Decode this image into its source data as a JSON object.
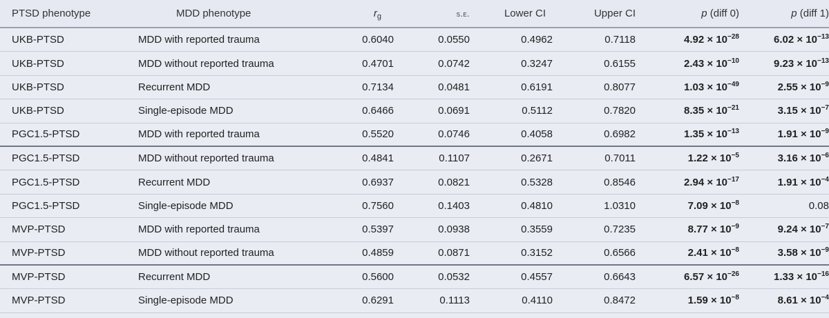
{
  "header": {
    "ptsd": "PTSD phenotype",
    "mdd": "MDD phenotype",
    "rg_base": "r",
    "rg_sub": "g",
    "se": "s.e.",
    "lower": "Lower CI",
    "upper": "Upper CI",
    "p0_var": "p",
    "p0_rest": " (diff 0)",
    "p1_var": "p",
    "p1_rest": " (diff 1)"
  },
  "rows": [
    {
      "ptsd": "UKB-PTSD",
      "mdd": "MDD with reported trauma",
      "rg": "0.6040",
      "se": "0.0550",
      "lower": "0.4962",
      "upper": "0.7118",
      "p0": {
        "mant": "4.92",
        "times": " × 10",
        "exp": "−28",
        "bold": true
      },
      "p1": {
        "mant": "6.02",
        "times": " × 10",
        "exp": "−13",
        "bold": true
      }
    },
    {
      "ptsd": "UKB-PTSD",
      "mdd": "MDD without reported trauma",
      "rg": "0.4701",
      "se": "0.0742",
      "lower": "0.3247",
      "upper": "0.6155",
      "p0": {
        "mant": "2.43",
        "times": " × 10",
        "exp": "−10",
        "bold": true
      },
      "p1": {
        "mant": "9.23",
        "times": " × 10",
        "exp": "−13",
        "bold": true
      }
    },
    {
      "ptsd": "UKB-PTSD",
      "mdd": "Recurrent MDD",
      "rg": "0.7134",
      "se": "0.0481",
      "lower": "0.6191",
      "upper": "0.8077",
      "p0": {
        "mant": "1.03",
        "times": " × 10",
        "exp": "−49",
        "bold": true
      },
      "p1": {
        "mant": "2.55",
        "times": " × 10",
        "exp": "−9",
        "bold": true
      }
    },
    {
      "ptsd": "UKB-PTSD",
      "mdd": "Single-episode MDD",
      "rg": "0.6466",
      "se": "0.0691",
      "lower": "0.5112",
      "upper": "0.7820",
      "p0": {
        "mant": "8.35",
        "times": " × 10",
        "exp": "−21",
        "bold": true
      },
      "p1": {
        "mant": "3.15",
        "times": " × 10",
        "exp": "−7",
        "bold": true
      }
    },
    {
      "ptsd": "PGC1.5-PTSD",
      "mdd": "MDD with reported trauma",
      "rg": "0.5520",
      "se": "0.0746",
      "lower": "0.4058",
      "upper": "0.6982",
      "p0": {
        "mant": "1.35",
        "times": " × 10",
        "exp": "−13",
        "bold": true
      },
      "p1": {
        "mant": "1.91",
        "times": " × 10",
        "exp": "−9",
        "bold": true
      }
    },
    {
      "ptsd": "PGC1.5-PTSD",
      "mdd": "MDD without reported trauma",
      "rg": "0.4841",
      "se": "0.1107",
      "lower": "0.2671",
      "upper": "0.7011",
      "p0": {
        "mant": "1.22",
        "times": " × 10",
        "exp": "−5",
        "bold": true
      },
      "p1": {
        "mant": "3.16",
        "times": " × 10",
        "exp": "−6",
        "bold": true
      }
    },
    {
      "ptsd": "PGC1.5-PTSD",
      "mdd": "Recurrent MDD",
      "rg": "0.6937",
      "se": "0.0821",
      "lower": "0.5328",
      "upper": "0.8546",
      "p0": {
        "mant": "2.94",
        "times": " × 10",
        "exp": "−17",
        "bold": true
      },
      "p1": {
        "mant": "1.91",
        "times": " × 10",
        "exp": "−4",
        "bold": true
      }
    },
    {
      "ptsd": "PGC1.5-PTSD",
      "mdd": "Single-episode MDD",
      "rg": "0.7560",
      "se": "0.1403",
      "lower": "0.4810",
      "upper": "1.0310",
      "p0": {
        "mant": "7.09",
        "times": " × 10",
        "exp": "−8",
        "bold": true
      },
      "p1": {
        "mant": "0.08",
        "times": "",
        "exp": "",
        "bold": false
      }
    },
    {
      "ptsd": "MVP-PTSD",
      "mdd": "MDD with reported trauma",
      "rg": "0.5397",
      "se": "0.0938",
      "lower": "0.3559",
      "upper": "0.7235",
      "p0": {
        "mant": "8.77",
        "times": " × 10",
        "exp": "−9",
        "bold": true
      },
      "p1": {
        "mant": "9.24",
        "times": " × 10",
        "exp": "−7",
        "bold": true
      }
    },
    {
      "ptsd": "MVP-PTSD",
      "mdd": "MDD without reported trauma",
      "rg": "0.4859",
      "se": "0.0871",
      "lower": "0.3152",
      "upper": "0.6566",
      "p0": {
        "mant": "2.41",
        "times": " × 10",
        "exp": "−8",
        "bold": true
      },
      "p1": {
        "mant": "3.58",
        "times": " × 10",
        "exp": "−9",
        "bold": true
      }
    },
    {
      "ptsd": "MVP-PTSD",
      "mdd": "Recurrent MDD",
      "rg": "0.5600",
      "se": "0.0532",
      "lower": "0.4557",
      "upper": "0.6643",
      "p0": {
        "mant": "6.57",
        "times": " × 10",
        "exp": "−26",
        "bold": true
      },
      "p1": {
        "mant": "1.33",
        "times": " × 10",
        "exp": "−16",
        "bold": true
      }
    },
    {
      "ptsd": "MVP-PTSD",
      "mdd": "Single-episode MDD",
      "rg": "0.6291",
      "se": "0.1113",
      "lower": "0.4110",
      "upper": "0.8472",
      "p0": {
        "mant": "1.59",
        "times": " × 10",
        "exp": "−8",
        "bold": true
      },
      "p1": {
        "mant": "8.61",
        "times": " × 10",
        "exp": "−4",
        "bold": true
      }
    }
  ]
}
